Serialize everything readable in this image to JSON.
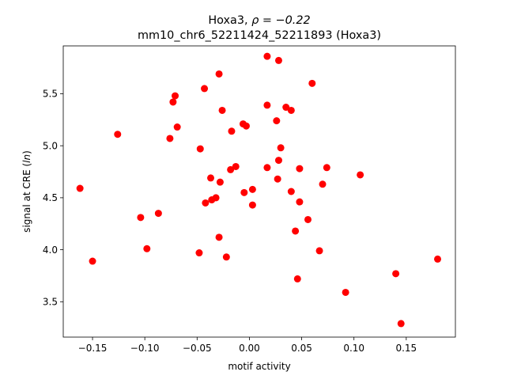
{
  "chart_data": {
    "type": "scatter",
    "title_line1_prefix": "Hoxa3, ",
    "title_line1_math": "ρ = −0.22",
    "title_line2": "mm10_chr6_52211424_52211893 (Hoxa3)",
    "xlabel": "motif activity",
    "ylabel_prefix": "signal at CRE (",
    "ylabel_math": "ln",
    "ylabel_suffix": ")",
    "xlim": [
      -0.178,
      0.197
    ],
    "ylim": [
      3.16,
      5.96
    ],
    "xticks": [
      -0.15,
      -0.1,
      -0.05,
      0.0,
      0.05,
      0.1,
      0.15
    ],
    "xtick_labels": [
      "−0.15",
      "−0.10",
      "−0.05",
      "0.00",
      "0.05",
      "0.10",
      "0.15"
    ],
    "yticks": [
      3.5,
      4.0,
      4.5,
      5.0,
      5.5
    ],
    "ytick_labels": [
      "3.5",
      "4.0",
      "4.5",
      "5.0",
      "5.5"
    ],
    "grid": false,
    "marker_color": "#ff0000",
    "points": [
      {
        "x": -0.162,
        "y": 4.59
      },
      {
        "x": -0.15,
        "y": 3.89
      },
      {
        "x": -0.126,
        "y": 5.11
      },
      {
        "x": -0.104,
        "y": 4.31
      },
      {
        "x": -0.098,
        "y": 4.01
      },
      {
        "x": -0.087,
        "y": 4.35
      },
      {
        "x": -0.076,
        "y": 5.07
      },
      {
        "x": -0.073,
        "y": 5.42
      },
      {
        "x": -0.071,
        "y": 5.48
      },
      {
        "x": -0.069,
        "y": 5.18
      },
      {
        "x": -0.048,
        "y": 3.97
      },
      {
        "x": -0.047,
        "y": 4.97
      },
      {
        "x": -0.043,
        "y": 5.55
      },
      {
        "x": -0.042,
        "y": 4.45
      },
      {
        "x": -0.037,
        "y": 4.69
      },
      {
        "x": -0.036,
        "y": 4.48
      },
      {
        "x": -0.032,
        "y": 4.5
      },
      {
        "x": -0.029,
        "y": 5.69
      },
      {
        "x": -0.029,
        "y": 4.12
      },
      {
        "x": -0.028,
        "y": 4.65
      },
      {
        "x": -0.026,
        "y": 5.34
      },
      {
        "x": -0.022,
        "y": 3.93
      },
      {
        "x": -0.018,
        "y": 4.77
      },
      {
        "x": -0.017,
        "y": 5.14
      },
      {
        "x": -0.013,
        "y": 4.8
      },
      {
        "x": -0.006,
        "y": 5.21
      },
      {
        "x": -0.005,
        "y": 4.55
      },
      {
        "x": -0.003,
        "y": 5.19
      },
      {
        "x": 0.003,
        "y": 4.58
      },
      {
        "x": 0.003,
        "y": 4.43
      },
      {
        "x": 0.017,
        "y": 5.86
      },
      {
        "x": 0.017,
        "y": 5.39
      },
      {
        "x": 0.017,
        "y": 4.79
      },
      {
        "x": 0.026,
        "y": 5.24
      },
      {
        "x": 0.027,
        "y": 4.68
      },
      {
        "x": 0.028,
        "y": 5.82
      },
      {
        "x": 0.028,
        "y": 4.86
      },
      {
        "x": 0.03,
        "y": 4.98
      },
      {
        "x": 0.035,
        "y": 5.37
      },
      {
        "x": 0.04,
        "y": 5.34
      },
      {
        "x": 0.04,
        "y": 4.56
      },
      {
        "x": 0.044,
        "y": 4.18
      },
      {
        "x": 0.046,
        "y": 3.72
      },
      {
        "x": 0.048,
        "y": 4.78
      },
      {
        "x": 0.048,
        "y": 4.46
      },
      {
        "x": 0.056,
        "y": 4.29
      },
      {
        "x": 0.06,
        "y": 5.6
      },
      {
        "x": 0.067,
        "y": 3.99
      },
      {
        "x": 0.07,
        "y": 4.63
      },
      {
        "x": 0.074,
        "y": 4.79
      },
      {
        "x": 0.092,
        "y": 3.59
      },
      {
        "x": 0.106,
        "y": 4.72
      },
      {
        "x": 0.14,
        "y": 3.77
      },
      {
        "x": 0.145,
        "y": 3.29
      },
      {
        "x": 0.18,
        "y": 3.91
      }
    ]
  }
}
